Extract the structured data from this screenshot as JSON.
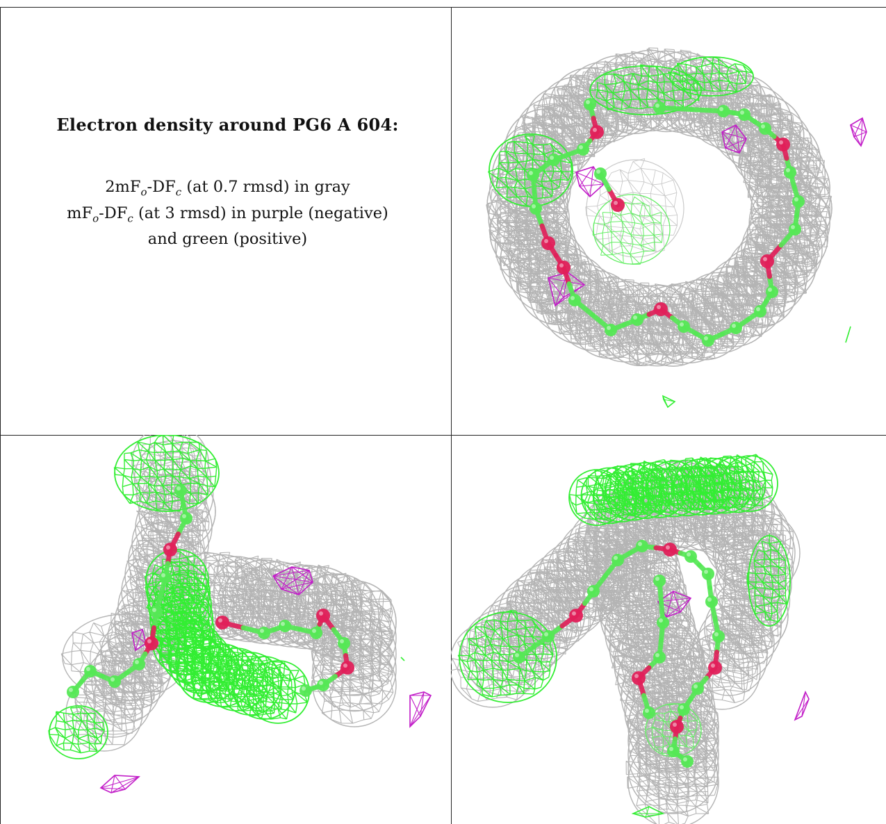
{
  "caption": {
    "title": "Electron density around PG6 A 604:",
    "gray_map": {
      "prefix": "2mF",
      "sub1": "o",
      "mid": "-DF",
      "sub2": "c",
      "suffix": " (at 0.7 rmsd) in gray"
    },
    "diff_map": {
      "prefix": "mF",
      "sub1": "o",
      "mid": "-DF",
      "sub2": "c",
      "suffix": " (at 3 rmsd) in purple (negative)"
    },
    "diff_map_cont": "and green (positive)"
  },
  "colors": {
    "gray_mesh": "#b4b4b4",
    "green_mesh": "#33ee33",
    "purple_mesh": "#c21ec8",
    "carbon": "#55e855",
    "oxygen": "#e0205a"
  },
  "panels": [
    {
      "id": "view-top-right",
      "type": "ring"
    },
    {
      "id": "view-bottom-left",
      "type": "branch"
    },
    {
      "id": "view-bottom-right",
      "type": "folded"
    }
  ]
}
